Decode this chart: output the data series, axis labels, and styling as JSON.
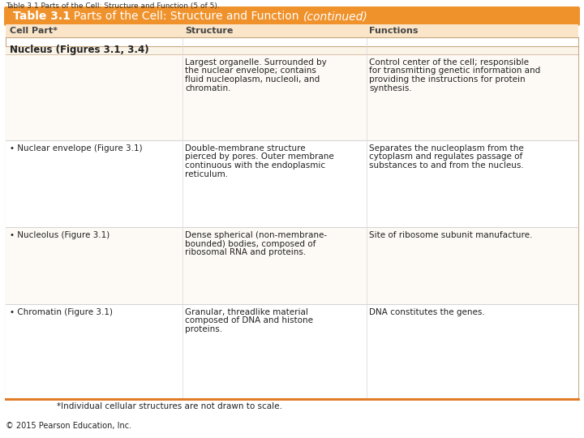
{
  "page_title": "Table 3.1 Parts of the Cell: Structure and Function (5 of 5).",
  "header_bg": "#F0922B",
  "header_text_bold": "Table 3.1",
  "header_text_normal": "  Parts of the Cell: Structure and Function ",
  "header_text_italic": "(continued)",
  "header_text_color": "#FFFFFF",
  "col_header_bg": "#FAE5C8",
  "col_headers": [
    "Cell Part*",
    "Structure",
    "Functions"
  ],
  "col_header_color": "#444444",
  "section_header": "Nucleus (Figures 3.1, 3.4)",
  "section_header_color": "#222222",
  "rows": [
    {
      "part": "",
      "part_bullet": false,
      "structure": "Largest organelle. Surrounded by\nthe nuclear envelope; contains\nfluid nucleoplasm, nucleoli, and\nchromatin.",
      "functions": "Control center of the cell; responsible\nfor transmitting genetic information and\nproviding the instructions for protein\nsynthesis."
    },
    {
      "part": "Nuclear envelope (Figure 3.1)",
      "part_bullet": true,
      "structure": "Double-membrane structure\npierced by pores. Outer membrane\ncontinuous with the endoplasmic\nreticulum.",
      "functions": "Separates the nucleoplasm from the\ncytoplasm and regulates passage of\nsubstances to and from the nucleus."
    },
    {
      "part": "Nucleolus (Figure 3.1)",
      "part_bullet": true,
      "structure": "Dense spherical (non-membrane-\nbounded) bodies, composed of\nribosomal RNA and proteins.",
      "functions": "Site of ribosome subunit manufacture."
    },
    {
      "part": "Chromatin (Figure 3.1)",
      "part_bullet": true,
      "structure": "Granular, threadlike material\ncomposed of DNA and histone\nproteins.",
      "functions": "DNA constitutes the genes."
    }
  ],
  "footnote": "*Individual cellular structures are not drawn to scale.",
  "copyright": "© 2015 Pearson Education, Inc.",
  "text_color": "#222222",
  "row_line_color": "#CCCCCC",
  "orange_line_color": "#E07820",
  "col_divider_color": "#DDDDDD",
  "table_border_color": "#C8A882"
}
